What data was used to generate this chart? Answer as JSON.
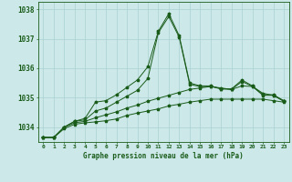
{
  "title": "Graphe pression niveau de la mer (hPa)",
  "background_color": "#cce8e8",
  "grid_color": "#aad0d0",
  "line_color": "#1a5c1a",
  "x_labels": [
    "0",
    "1",
    "2",
    "3",
    "4",
    "5",
    "6",
    "7",
    "8",
    "9",
    "10",
    "11",
    "12",
    "13",
    "14",
    "15",
    "16",
    "17",
    "18",
    "19",
    "20",
    "21",
    "22",
    "23"
  ],
  "series1": [
    1033.65,
    1033.65,
    1034.0,
    1034.2,
    1034.3,
    1034.85,
    1034.9,
    1035.1,
    1035.35,
    1035.6,
    1036.05,
    1037.25,
    1037.85,
    1037.1,
    1035.5,
    1035.4,
    1035.4,
    1035.3,
    1035.3,
    1035.6,
    1035.4,
    1035.1,
    1035.1,
    1034.9
  ],
  "series2": [
    1033.65,
    1033.65,
    1034.0,
    1034.2,
    1034.25,
    1034.55,
    1034.65,
    1034.85,
    1035.05,
    1035.25,
    1035.65,
    1037.2,
    1037.75,
    1037.05,
    1035.45,
    1035.38,
    1035.38,
    1035.3,
    1035.28,
    1035.55,
    1035.38,
    1035.08,
    1035.08,
    1034.88
  ],
  "series3": [
    1033.65,
    1033.65,
    1034.0,
    1034.15,
    1034.2,
    1034.32,
    1034.42,
    1034.52,
    1034.65,
    1034.75,
    1034.88,
    1034.98,
    1035.08,
    1035.18,
    1035.28,
    1035.33,
    1035.38,
    1035.33,
    1035.28,
    1035.4,
    1035.38,
    1035.15,
    1035.08,
    1034.88
  ],
  "series4": [
    1033.65,
    1033.65,
    1033.95,
    1034.1,
    1034.15,
    1034.18,
    1034.22,
    1034.28,
    1034.4,
    1034.48,
    1034.55,
    1034.62,
    1034.72,
    1034.78,
    1034.85,
    1034.9,
    1034.95,
    1034.95,
    1034.95,
    1034.95,
    1034.95,
    1034.95,
    1034.9,
    1034.85
  ],
  "ylim": [
    1033.5,
    1038.25
  ],
  "yticks": [
    1034,
    1035,
    1036,
    1037,
    1038
  ],
  "figsize": [
    3.2,
    2.0
  ],
  "dpi": 100
}
